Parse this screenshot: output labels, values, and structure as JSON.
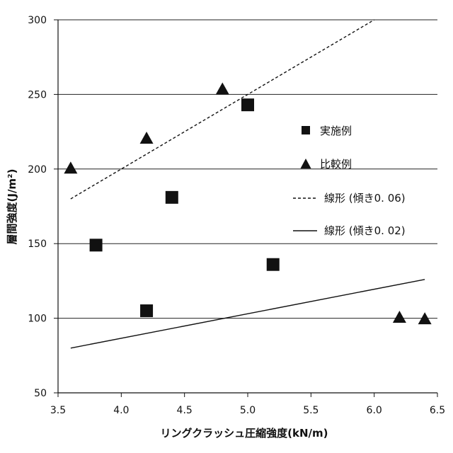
{
  "chart_data": {
    "type": "scatter",
    "xlabel": "リングクラッシュ圧縮強度(kN/m)",
    "ylabel": "層間強度(J/m²)",
    "xlim": [
      3.5,
      6.5
    ],
    "ylim": [
      50,
      300
    ],
    "x_ticks": [
      "3.5",
      "4.0",
      "4.5",
      "5.0",
      "5.5",
      "6.0",
      "6.5"
    ],
    "y_ticks": [
      "50",
      "100",
      "150",
      "200",
      "250",
      "300"
    ],
    "grid": true,
    "legend_position": "right",
    "ink_color": "#111111",
    "series": [
      {
        "name": "実施例",
        "kind": "scatter",
        "marker": "square",
        "x": [
          3.8,
          4.2,
          4.4,
          5.0,
          5.2
        ],
        "y": [
          149,
          105,
          181,
          243,
          136
        ]
      },
      {
        "name": "比較例",
        "kind": "scatter",
        "marker": "triangle",
        "x": [
          3.6,
          4.2,
          4.8,
          6.2,
          6.4
        ],
        "y": [
          201,
          221,
          254,
          101,
          100
        ]
      },
      {
        "name": "線形 (傾き0. 06)",
        "kind": "line",
        "line_style": "dashed",
        "x": [
          3.6,
          6.0
        ],
        "y": [
          180,
          300
        ]
      },
      {
        "name": "線形 (傾き0. 02)",
        "kind": "line",
        "line_style": "solid",
        "x": [
          3.6,
          6.4
        ],
        "y": [
          80,
          126
        ]
      }
    ]
  }
}
